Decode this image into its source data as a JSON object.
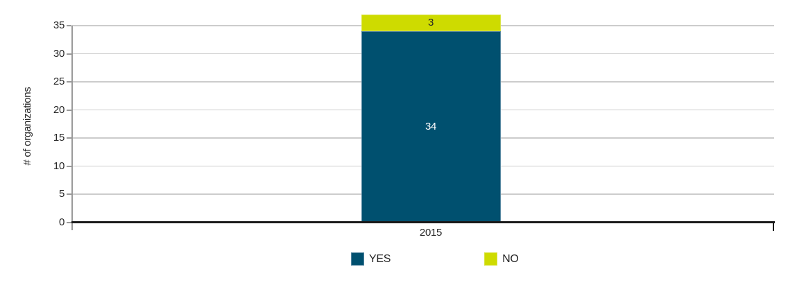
{
  "chart_data": {
    "type": "bar",
    "stacked": true,
    "title": "",
    "xlabel": "",
    "ylabel": "# of organizations",
    "categories": [
      "2015"
    ],
    "series": [
      {
        "name": "YES",
        "values": [
          34
        ],
        "color": "#00506f",
        "edge_color": "#5486a0",
        "label_color": "#ffffff"
      },
      {
        "name": "NO",
        "values": [
          3
        ],
        "color": "#cedb00",
        "edge_color": "#d9e344",
        "label_color": "#262626"
      }
    ],
    "ylim": [
      0,
      35
    ],
    "yticks": [
      0,
      5,
      10,
      15,
      20,
      25,
      30,
      35
    ],
    "grid": true,
    "legend_position": "bottom",
    "colors": {
      "gridline": "#cccccc",
      "axis_gray": "#9a9a9a",
      "axis_black": "#1a1a1a",
      "text": "#262626"
    }
  }
}
